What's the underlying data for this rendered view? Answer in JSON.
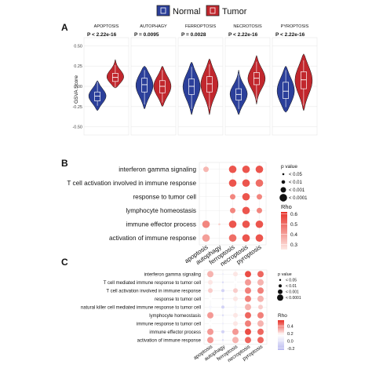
{
  "figure": {
    "panels": [
      "A",
      "B",
      "C"
    ]
  },
  "chart_data": [
    {
      "type": "violin",
      "panel": "A",
      "legend": {
        "position": "top-center",
        "items": [
          {
            "name": "Normal",
            "color": "#2b3f9a"
          },
          {
            "name": "Tumor",
            "color": "#c1272d"
          }
        ]
      },
      "ylabel": "GSVA Score",
      "yticks": [
        -0.5,
        -0.25,
        0,
        0.25,
        0.5
      ],
      "ylim": [
        -0.6,
        0.6
      ],
      "grid": true,
      "facets": [
        {
          "label": "APOPTOSIS",
          "p": "P < 2.22e-16",
          "normal": {
            "median": -0.12,
            "q1": -0.18,
            "q3": -0.07,
            "min": -0.3,
            "max": 0.07
          },
          "tumor": {
            "median": 0.11,
            "q1": 0.06,
            "q3": 0.16,
            "min": -0.02,
            "max": 0.33
          }
        },
        {
          "label": "AUTOPHAGY",
          "p": "P = 0.0095",
          "normal": {
            "median": 0.02,
            "q1": -0.07,
            "q3": 0.1,
            "min": -0.28,
            "max": 0.25
          },
          "tumor": {
            "median": 0.0,
            "q1": -0.08,
            "q3": 0.07,
            "min": -0.25,
            "max": 0.25
          }
        },
        {
          "label": "FERROPTOSIS",
          "p": "P = 0.0028",
          "normal": {
            "median": 0.0,
            "q1": -0.1,
            "q3": 0.09,
            "min": -0.35,
            "max": 0.3
          },
          "tumor": {
            "median": 0.03,
            "q1": -0.07,
            "q3": 0.12,
            "min": -0.35,
            "max": 0.34
          }
        },
        {
          "label": "NECROTOSIS",
          "p": "P < 2.22e-16",
          "normal": {
            "median": -0.1,
            "q1": -0.17,
            "q3": -0.03,
            "min": -0.35,
            "max": 0.2
          },
          "tumor": {
            "median": 0.1,
            "q1": 0.02,
            "q3": 0.17,
            "min": -0.22,
            "max": 0.38
          }
        },
        {
          "label": "PYROPTOSIS",
          "p": "P < 2.22e-16",
          "normal": {
            "median": -0.06,
            "q1": -0.15,
            "q3": 0.05,
            "min": -0.32,
            "max": 0.25
          },
          "tumor": {
            "median": 0.08,
            "q1": -0.03,
            "q3": 0.18,
            "min": -0.3,
            "max": 0.4
          }
        }
      ]
    },
    {
      "type": "heatmap",
      "panel": "B",
      "rows": [
        "interferon gamma signaling",
        "T cell activation involved in immune response",
        "response to tumor cell",
        "lymphocyte homeostasis",
        "immune effector process",
        "activation of immune response"
      ],
      "columns": [
        "apoptosis",
        "autophagy",
        "ferroptosis",
        "necroptosis",
        "pyroptosis"
      ],
      "rho": [
        [
          0.35,
          null,
          0.55,
          0.55,
          0.55
        ],
        [
          null,
          null,
          0.55,
          0.55,
          0.5
        ],
        [
          null,
          null,
          0.45,
          0.55,
          0.45
        ],
        [
          null,
          null,
          0.45,
          0.55,
          0.45
        ],
        [
          0.45,
          0.3,
          0.55,
          0.55,
          0.55
        ],
        [
          0.4,
          null,
          0.5,
          0.55,
          0.55
        ]
      ],
      "pvalue_size": [
        [
          3,
          null,
          4,
          4,
          4
        ],
        [
          null,
          null,
          4,
          4,
          4
        ],
        [
          null,
          null,
          3,
          4,
          3
        ],
        [
          null,
          null,
          3,
          4,
          3
        ],
        [
          4,
          1,
          4,
          4,
          4
        ],
        [
          4,
          null,
          4,
          4,
          4
        ]
      ],
      "size_legend": {
        "title": "p value",
        "items": [
          "< 0.05",
          "< 0.01",
          "< 0.001",
          "< 0.0001"
        ]
      },
      "color_legend": {
        "title": "Rho",
        "ticks": [
          "0.6",
          "0.5",
          "0.4",
          "0.3"
        ],
        "min": 0.25,
        "max": 0.62,
        "colors": [
          "#fde8e4",
          "#e8332a"
        ]
      }
    },
    {
      "type": "heatmap",
      "panel": "C",
      "rows": [
        "interferon gamma signaling",
        "T cell mediated immune response to tumor cell",
        "T cell activation involved in immune response",
        "response to tumor cell",
        "natural killer cell mediated immune response to tumor cell",
        "lymphocyte homeostasis",
        "immune response to tumor cell",
        "immune effector process",
        "activation of immune response"
      ],
      "columns": [
        "apoptosis",
        "autophagy",
        "ferroptosis",
        "necroptosis",
        "pyroptosis"
      ],
      "rho": [
        [
          0.3,
          0.05,
          0.2,
          0.5,
          0.45
        ],
        [
          0.2,
          -0.05,
          0.15,
          0.35,
          0.3
        ],
        [
          0.25,
          -0.1,
          0.25,
          0.4,
          0.4
        ],
        [
          0.15,
          -0.05,
          0.2,
          0.4,
          0.3
        ],
        [
          0.1,
          -0.1,
          0.1,
          0.3,
          0.25
        ],
        [
          0.35,
          -0.05,
          0.2,
          0.45,
          0.4
        ],
        [
          0.15,
          0.05,
          0.2,
          0.4,
          0.3
        ],
        [
          0.35,
          -0.1,
          0.35,
          0.5,
          0.45
        ],
        [
          0.35,
          -0.05,
          0.3,
          0.45,
          0.45
        ]
      ],
      "pvalue_size": [
        [
          4,
          1,
          3,
          4,
          4
        ],
        [
          3,
          1,
          2,
          4,
          4
        ],
        [
          3,
          2,
          3,
          4,
          4
        ],
        [
          2,
          1,
          3,
          4,
          4
        ],
        [
          2,
          2,
          2,
          4,
          3
        ],
        [
          4,
          1,
          3,
          4,
          4
        ],
        [
          2,
          1,
          3,
          4,
          4
        ],
        [
          4,
          2,
          4,
          4,
          4
        ],
        [
          4,
          1,
          4,
          4,
          4
        ]
      ],
      "size_legend": {
        "title": "p value",
        "items": [
          "< 0.05",
          "< 0.01",
          "< 0.001",
          "< 0.0001"
        ]
      },
      "color_legend": {
        "title": "Rho",
        "ticks": [
          "0.4",
          "0.2",
          "0.0",
          "-0.2"
        ],
        "min": -0.25,
        "max": 0.55,
        "colors": [
          "#b9b9f0",
          "#ffffff",
          "#e8332a"
        ]
      }
    }
  ]
}
